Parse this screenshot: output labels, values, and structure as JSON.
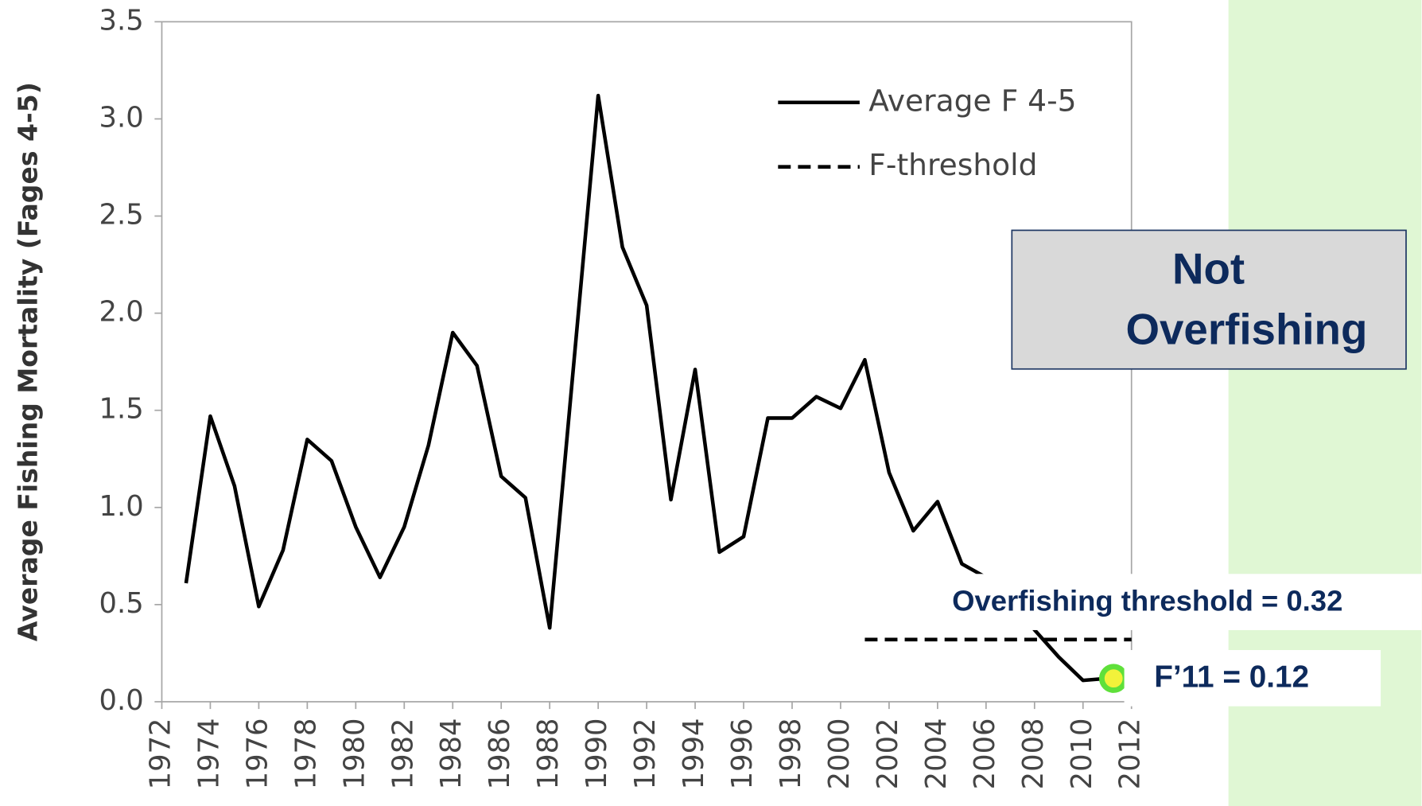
{
  "chart_data": {
    "type": "line",
    "y_label": "Average Fishing Mortality (Fages 4-5)",
    "xlim": [
      1972,
      2012
    ],
    "xticks": [
      1972,
      1974,
      1976,
      1978,
      1980,
      1982,
      1984,
      1986,
      1988,
      1990,
      1992,
      1994,
      1996,
      1998,
      2000,
      2002,
      2004,
      2006,
      2008,
      2010,
      2012
    ],
    "ylim": [
      0,
      3.5
    ],
    "yticks": [
      {
        "value": 0,
        "label": "0.0"
      },
      {
        "value": 0.5,
        "label": "0.5"
      },
      {
        "value": 1,
        "label": "1.0"
      },
      {
        "value": 1.5,
        "label": "1.5"
      },
      {
        "value": 2,
        "label": "2.0"
      },
      {
        "value": 2.5,
        "label": "2.5"
      },
      {
        "value": 3,
        "label": "3.0"
      },
      {
        "value": 3.5,
        "label": "3.5"
      }
    ],
    "series": [
      {
        "name": "Average F 4-5",
        "color": "#000000",
        "dash": false,
        "x": [
          1973,
          1974,
          1975,
          1976,
          1977,
          1978,
          1979,
          1980,
          1981,
          1982,
          1983,
          1984,
          1985,
          1986,
          1987,
          1988,
          1989,
          1990,
          1991,
          1992,
          1993,
          1994,
          1995,
          1996,
          1997,
          1998,
          1999,
          2000,
          2001,
          2002,
          2003,
          2004,
          2005,
          2006,
          2007,
          2008,
          2009,
          2010,
          2011
        ],
        "values": [
          0.61,
          1.47,
          1.11,
          0.49,
          0.78,
          1.35,
          1.24,
          0.9,
          0.64,
          0.9,
          1.32,
          1.9,
          1.73,
          1.16,
          1.05,
          0.38,
          1.75,
          3.12,
          2.34,
          2.04,
          1.04,
          1.71,
          0.77,
          0.85,
          1.46,
          1.46,
          1.57,
          1.51,
          1.76,
          1.18,
          0.88,
          1.03,
          0.71,
          0.64,
          0.53,
          0.37,
          0.23,
          0.11,
          0.12
        ]
      },
      {
        "name": "F-threshold",
        "color": "#000000",
        "dash": true,
        "x": [
          2001,
          2012
        ],
        "values": [
          0.32,
          0.32
        ]
      }
    ],
    "highlight": {
      "series": 0,
      "index": 38,
      "fill": "#f2f23a",
      "stroke": "#5fe03a"
    },
    "legend": "upper right",
    "annotations": [
      "Not",
      "Overfishing",
      "Overfishing threshold = 0.32",
      "F’11 = 0.12"
    ]
  }
}
